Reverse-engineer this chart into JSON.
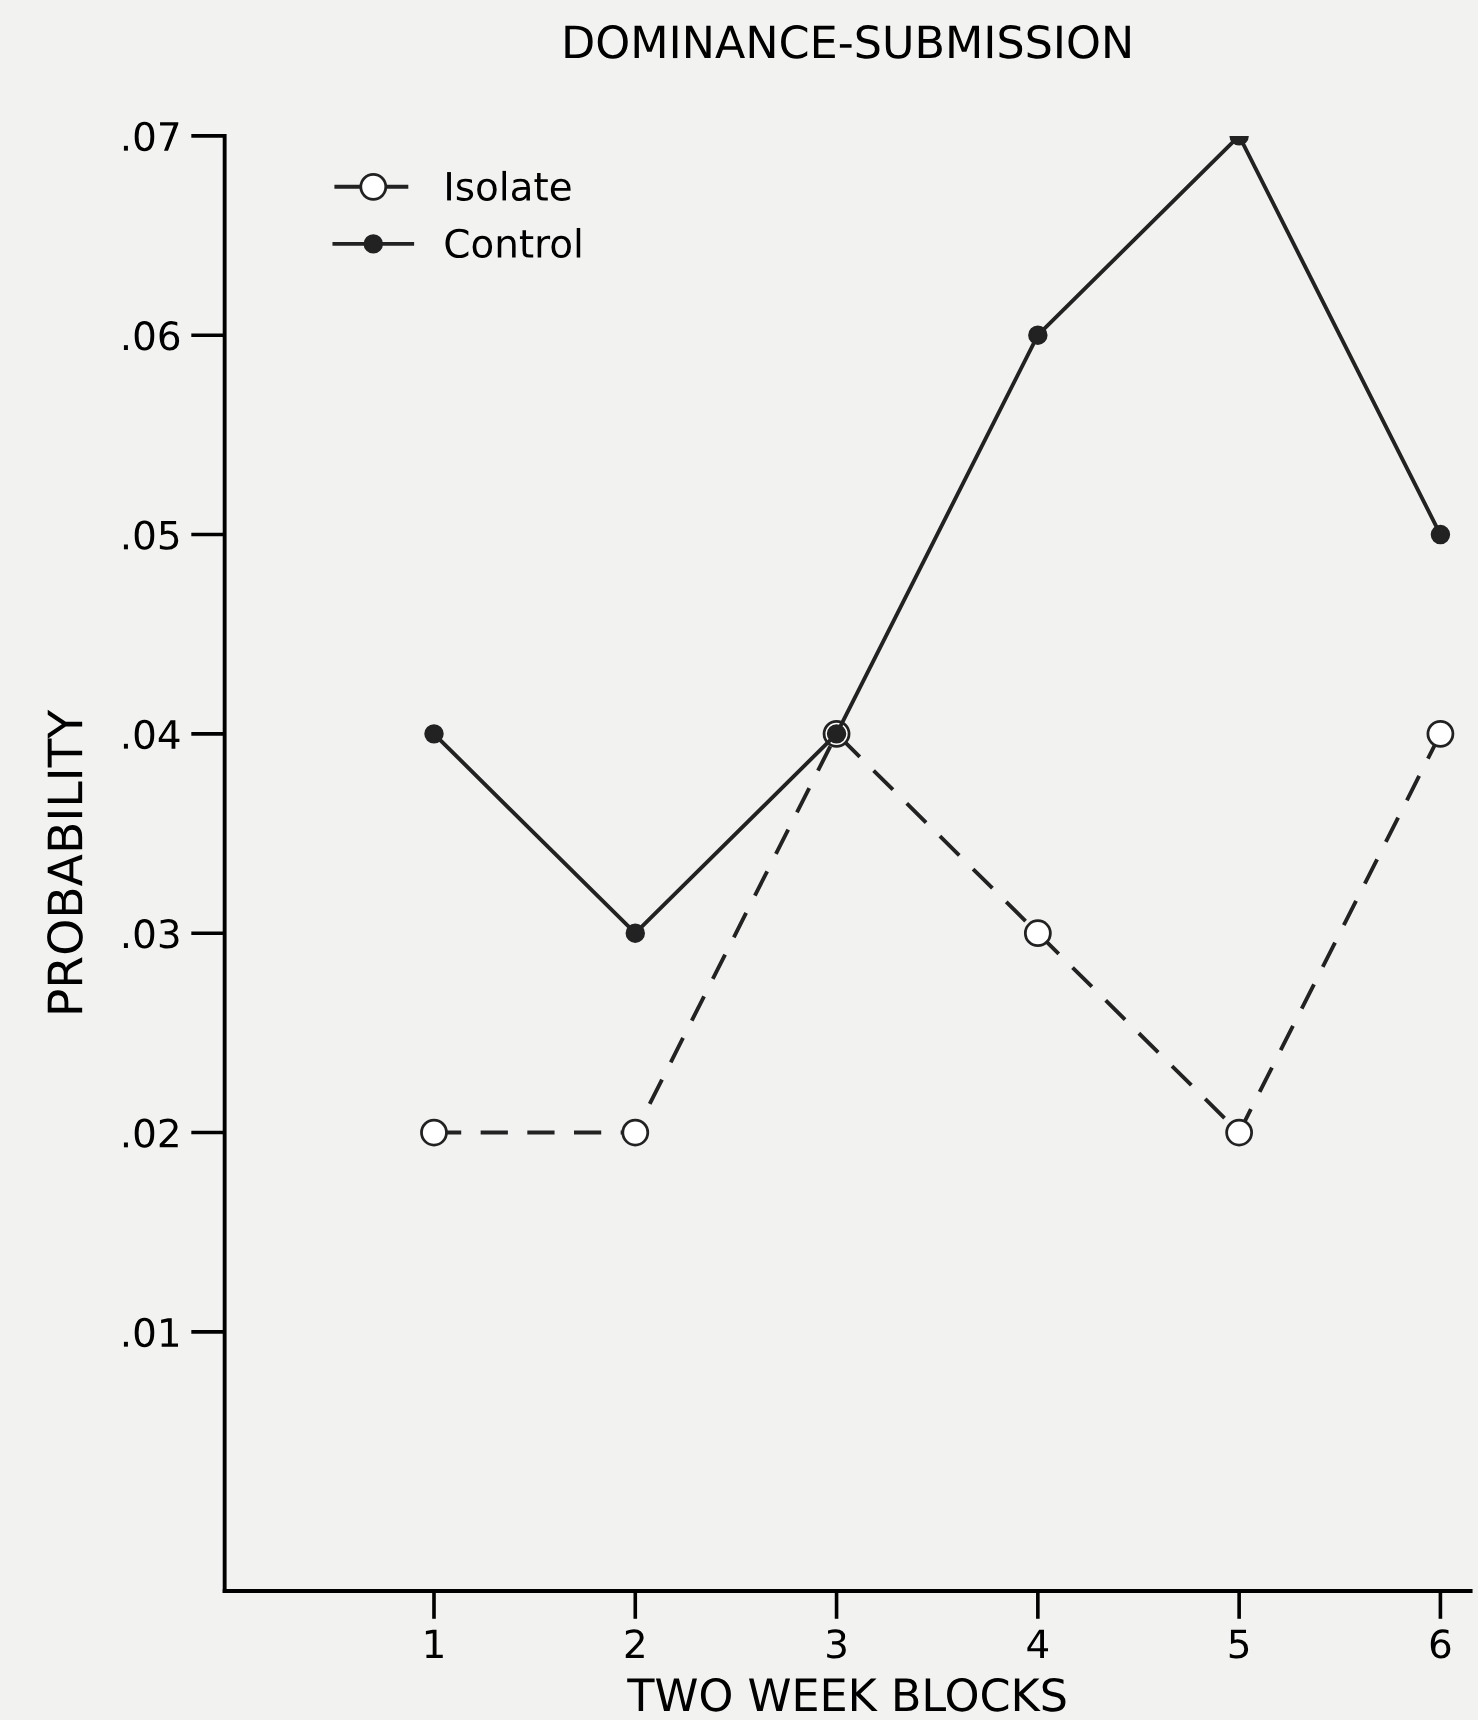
{
  "chart_data": {
    "type": "line",
    "title": "DOMINANCE-SUBMISSION",
    "xlabel": "TWO WEEK BLOCKS",
    "ylabel": "PROBABILITY",
    "x": [
      1,
      2,
      3,
      4,
      5,
      6
    ],
    "series": [
      {
        "name": "Isolate",
        "color": "#222222",
        "values": [
          0.02,
          0.02,
          0.04,
          0.03,
          0.02,
          0.04
        ],
        "line_style": "dashed",
        "marker": "circle"
      },
      {
        "name": "Control",
        "color": "#222222",
        "values": [
          0.04,
          0.03,
          0.04,
          0.06,
          0.07,
          0.05
        ],
        "line_style": "solid",
        "marker": "circle"
      }
    ],
    "xlim": [
      -0.04,
      6.15
    ],
    "xticks": [
      1,
      2,
      3,
      4,
      5,
      6
    ],
    "ylim": [
      -0.003,
      0.07
    ],
    "yticks": [
      {
        "value": 0.01,
        "label": ".01"
      },
      {
        "value": 0.02,
        "label": ".02"
      },
      {
        "value": 0.03,
        "label": ".03"
      },
      {
        "value": 0.04,
        "label": ".04"
      },
      {
        "value": 0.05,
        "label": ".05"
      },
      {
        "value": 0.06,
        "label": ".06"
      },
      {
        "value": 0.07,
        "label": ".07"
      }
    ],
    "grid": false,
    "legend": "top left"
  }
}
